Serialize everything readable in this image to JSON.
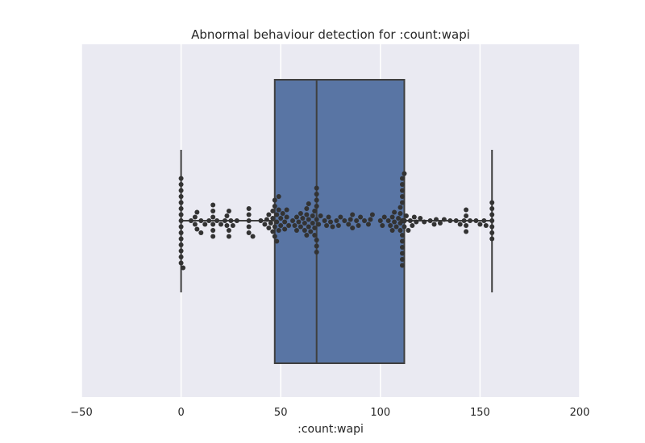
{
  "chart_data": {
    "type": "boxplot",
    "title": "Abnormal behaviour detection for :count:wapi",
    "xlabel": ":count:wapi",
    "ylabel": "",
    "xlim": [
      -50,
      200
    ],
    "xticks": [
      -50,
      0,
      50,
      100,
      150,
      200
    ],
    "xtick_labels": [
      "−50",
      "0",
      "50",
      "100",
      "150",
      "200"
    ],
    "grid": true,
    "box": {
      "whisker_low": 0,
      "q1": 47,
      "median": 68,
      "q3": 112,
      "whisker_high": 156,
      "fill_color": "#5975a4"
    },
    "swarm_color": "#333333",
    "points": [
      0,
      0,
      0,
      0,
      0,
      0,
      0,
      0,
      0,
      0,
      0,
      0,
      0,
      0,
      0,
      1,
      5,
      7,
      7,
      8,
      8,
      10,
      10,
      12,
      14,
      16,
      16,
      16,
      16,
      16,
      16,
      18,
      20,
      22,
      23,
      23,
      24,
      24,
      24,
      25,
      26,
      28,
      34,
      34,
      34,
      34,
      34,
      36,
      40,
      42,
      43,
      44,
      44,
      45,
      46,
      46,
      46,
      47,
      47,
      47,
      47,
      48,
      48,
      48,
      49,
      49,
      49,
      50,
      50,
      51,
      52,
      52,
      53,
      53,
      54,
      56,
      57,
      58,
      58,
      59,
      60,
      60,
      61,
      62,
      62,
      63,
      63,
      63,
      64,
      64,
      64,
      65,
      66,
      66,
      67,
      67,
      67,
      68,
      68,
      68,
      68,
      68,
      68,
      68,
      68,
      69,
      70,
      72,
      73,
      74,
      75,
      76,
      78,
      79,
      80,
      82,
      84,
      85,
      86,
      86,
      88,
      89,
      90,
      92,
      94,
      95,
      96,
      100,
      101,
      102,
      104,
      105,
      106,
      106,
      107,
      107,
      108,
      109,
      110,
      110,
      110,
      110,
      111,
      111,
      111,
      111,
      111,
      111,
      111,
      111,
      111,
      111,
      111,
      111,
      111,
      112,
      112,
      112,
      112,
      112,
      112,
      112,
      112,
      112,
      112,
      112,
      112,
      112,
      112,
      112,
      112,
      112,
      112,
      112,
      113,
      114,
      115,
      116,
      117,
      118,
      120,
      122,
      125,
      127,
      128,
      130,
      132,
      135,
      138,
      140,
      142,
      143,
      143,
      143,
      143,
      145,
      148,
      150,
      152,
      153,
      156,
      156,
      156,
      156,
      156,
      156,
      156
    ]
  }
}
